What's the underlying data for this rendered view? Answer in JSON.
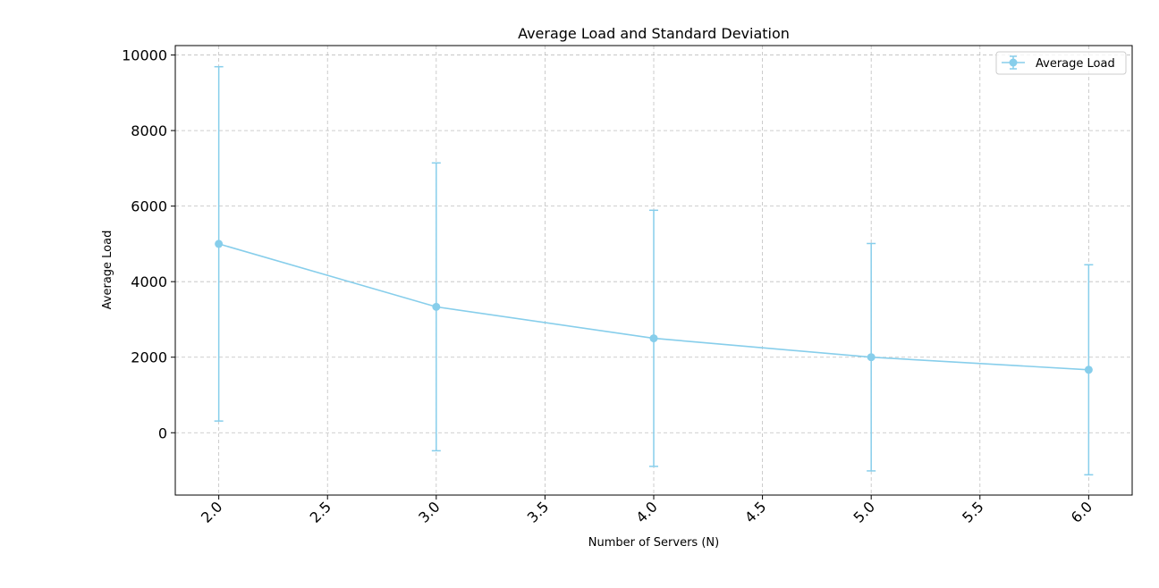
{
  "chart_data": {
    "type": "line",
    "title": "Average Load and Standard Deviation",
    "xlabel": "Number of Servers (N)",
    "ylabel": "Average Load",
    "x": [
      2,
      3,
      4,
      5,
      6
    ],
    "series": [
      {
        "name": "Average Load",
        "values": [
          5000,
          3333,
          2500,
          2000,
          1667
        ],
        "error": [
          4690,
          3810,
          3390,
          3010,
          2780
        ],
        "color": "#87ceeb",
        "marker": "circle"
      }
    ],
    "xlim": [
      1.8,
      6.2
    ],
    "ylim": [
      -1650,
      10250
    ],
    "xticks": [
      2.0,
      2.5,
      3.0,
      3.5,
      4.0,
      4.5,
      5.0,
      5.5,
      6.0
    ],
    "xtick_labels": [
      "2.0",
      "2.5",
      "3.0",
      "3.5",
      "4.0",
      "4.5",
      "5.0",
      "5.5",
      "6.0"
    ],
    "yticks": [
      0,
      2000,
      4000,
      6000,
      8000,
      10000
    ],
    "ytick_labels": [
      "0",
      "2000",
      "4000",
      "6000",
      "8000",
      "10000"
    ],
    "grid": true,
    "legend": "top-right"
  }
}
